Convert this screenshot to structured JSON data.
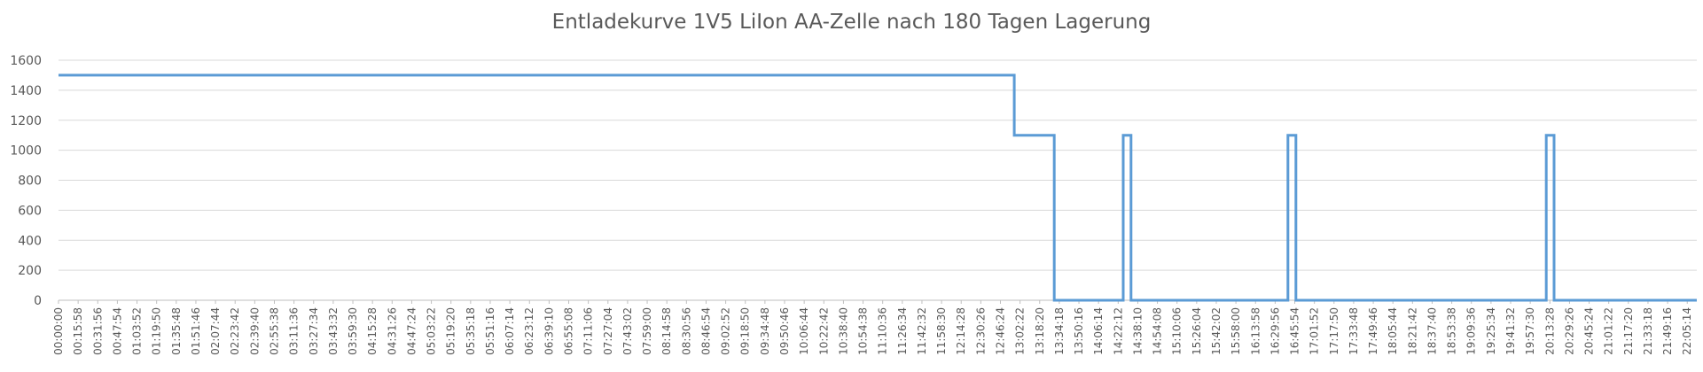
{
  "chart_data": {
    "type": "line",
    "title": "Entladekurve 1V5 LiIon AA-Zelle nach 180 Tagen Lagerung",
    "xlabel": "",
    "ylabel": "",
    "ylim": [
      0,
      1600
    ],
    "y_ticks": [
      0,
      200,
      400,
      600,
      800,
      1000,
      1200,
      1400,
      1600
    ],
    "grid": true,
    "legend": "none",
    "line_color": "#5b9bd5",
    "x_time_range": [
      "00:00:00",
      "22:13:00"
    ],
    "x_tick_labels": [
      "00:00:00",
      "00:15:58",
      "00:31:56",
      "00:47:54",
      "01:03:52",
      "01:19:50",
      "01:35:48",
      "01:51:46",
      "02:07:44",
      "02:23:42",
      "02:39:40",
      "02:55:38",
      "03:11:36",
      "03:27:34",
      "03:43:32",
      "03:59:30",
      "04:15:28",
      "04:31:26",
      "04:47:24",
      "05:03:22",
      "05:19:20",
      "05:35:18",
      "05:51:16",
      "06:07:14",
      "06:23:12",
      "06:39:10",
      "06:55:08",
      "07:11:06",
      "07:27:04",
      "07:43:02",
      "07:59:00",
      "08:14:58",
      "08:30:56",
      "08:46:54",
      "09:02:52",
      "09:18:50",
      "09:34:48",
      "09:50:46",
      "10:06:44",
      "10:22:42",
      "10:38:40",
      "10:54:38",
      "11:10:36",
      "11:26:34",
      "11:42:32",
      "11:58:30",
      "12:14:28",
      "12:30:26",
      "12:46:24",
      "13:02:22",
      "13:18:20",
      "13:34:18",
      "13:50:16",
      "14:06:14",
      "14:22:12",
      "14:38:10",
      "14:54:08",
      "15:10:06",
      "15:26:04",
      "15:42:02",
      "15:58:00",
      "16:13:58",
      "16:29:56",
      "16:45:54",
      "17:01:52",
      "17:17:50",
      "17:33:48",
      "17:49:46",
      "18:05:44",
      "18:21:42",
      "18:37:40",
      "18:53:38",
      "19:09:36",
      "19:25:34",
      "19:41:32",
      "19:57:30",
      "20:13:28",
      "20:29:26",
      "20:45:24",
      "21:01:22",
      "21:17:20",
      "21:33:18",
      "21:49:16",
      "22:05:14"
    ],
    "series": [
      {
        "points": [
          [
            "00:00:00",
            1500
          ],
          [
            "12:57:40",
            1500
          ],
          [
            "12:57:40",
            1100
          ],
          [
            "13:30:10",
            1100
          ],
          [
            "13:30:10",
            0
          ],
          [
            "14:26:20",
            0
          ],
          [
            "14:26:20",
            1100
          ],
          [
            "14:32:40",
            1100
          ],
          [
            "14:32:40",
            0
          ],
          [
            "16:40:20",
            0
          ],
          [
            "16:40:20",
            1100
          ],
          [
            "16:46:50",
            1100
          ],
          [
            "16:46:50",
            0
          ],
          [
            "20:10:30",
            0
          ],
          [
            "20:10:30",
            1100
          ],
          [
            "20:16:50",
            1100
          ],
          [
            "20:16:50",
            0
          ],
          [
            "22:13:00",
            0
          ]
        ]
      }
    ]
  }
}
